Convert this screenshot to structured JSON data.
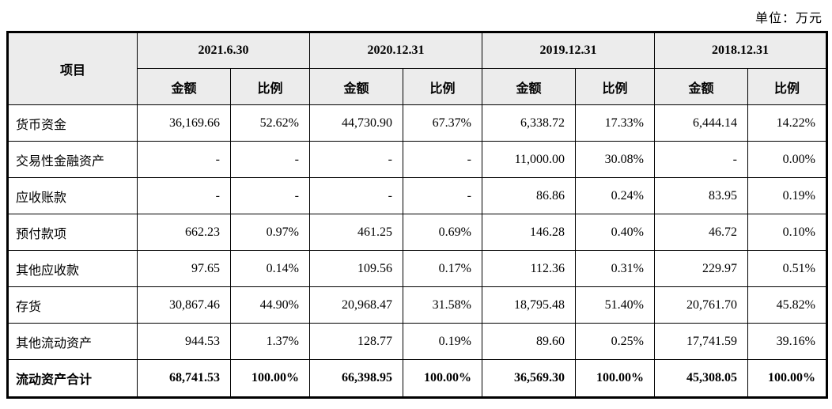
{
  "page": {
    "unit_label": "单位：万元"
  },
  "table": {
    "headers": {
      "item": "项目",
      "amount": "金额",
      "ratio": "比例"
    },
    "periods": [
      "2021.6.30",
      "2020.12.31",
      "2019.12.31",
      "2018.12.31"
    ],
    "rows": [
      {
        "item": "货币资金",
        "total": false,
        "cells": [
          "36,169.66",
          "52.62%",
          "44,730.90",
          "67.37%",
          "6,338.72",
          "17.33%",
          "6,444.14",
          "14.22%"
        ]
      },
      {
        "item": "交易性金融资产",
        "total": false,
        "cells": [
          "-",
          "-",
          "-",
          "-",
          "11,000.00",
          "30.08%",
          "-",
          "0.00%"
        ]
      },
      {
        "item": "应收账款",
        "total": false,
        "cells": [
          "-",
          "-",
          "-",
          "-",
          "86.86",
          "0.24%",
          "83.95",
          "0.19%"
        ]
      },
      {
        "item": "预付款项",
        "total": false,
        "cells": [
          "662.23",
          "0.97%",
          "461.25",
          "0.69%",
          "146.28",
          "0.40%",
          "46.72",
          "0.10%"
        ]
      },
      {
        "item": "其他应收款",
        "total": false,
        "cells": [
          "97.65",
          "0.14%",
          "109.56",
          "0.17%",
          "112.36",
          "0.31%",
          "229.97",
          "0.51%"
        ]
      },
      {
        "item": "存货",
        "total": false,
        "cells": [
          "30,867.46",
          "44.90%",
          "20,968.47",
          "31.58%",
          "18,795.48",
          "51.40%",
          "20,761.70",
          "45.82%"
        ]
      },
      {
        "item": "其他流动资产",
        "total": false,
        "cells": [
          "944.53",
          "1.37%",
          "128.77",
          "0.19%",
          "89.60",
          "0.25%",
          "17,741.59",
          "39.16%"
        ]
      },
      {
        "item": "流动资产合计",
        "total": true,
        "cells": [
          "68,741.53",
          "100.00%",
          "66,398.95",
          "100.00%",
          "36,569.30",
          "100.00%",
          "45,308.05",
          "100.00%"
        ]
      }
    ]
  }
}
